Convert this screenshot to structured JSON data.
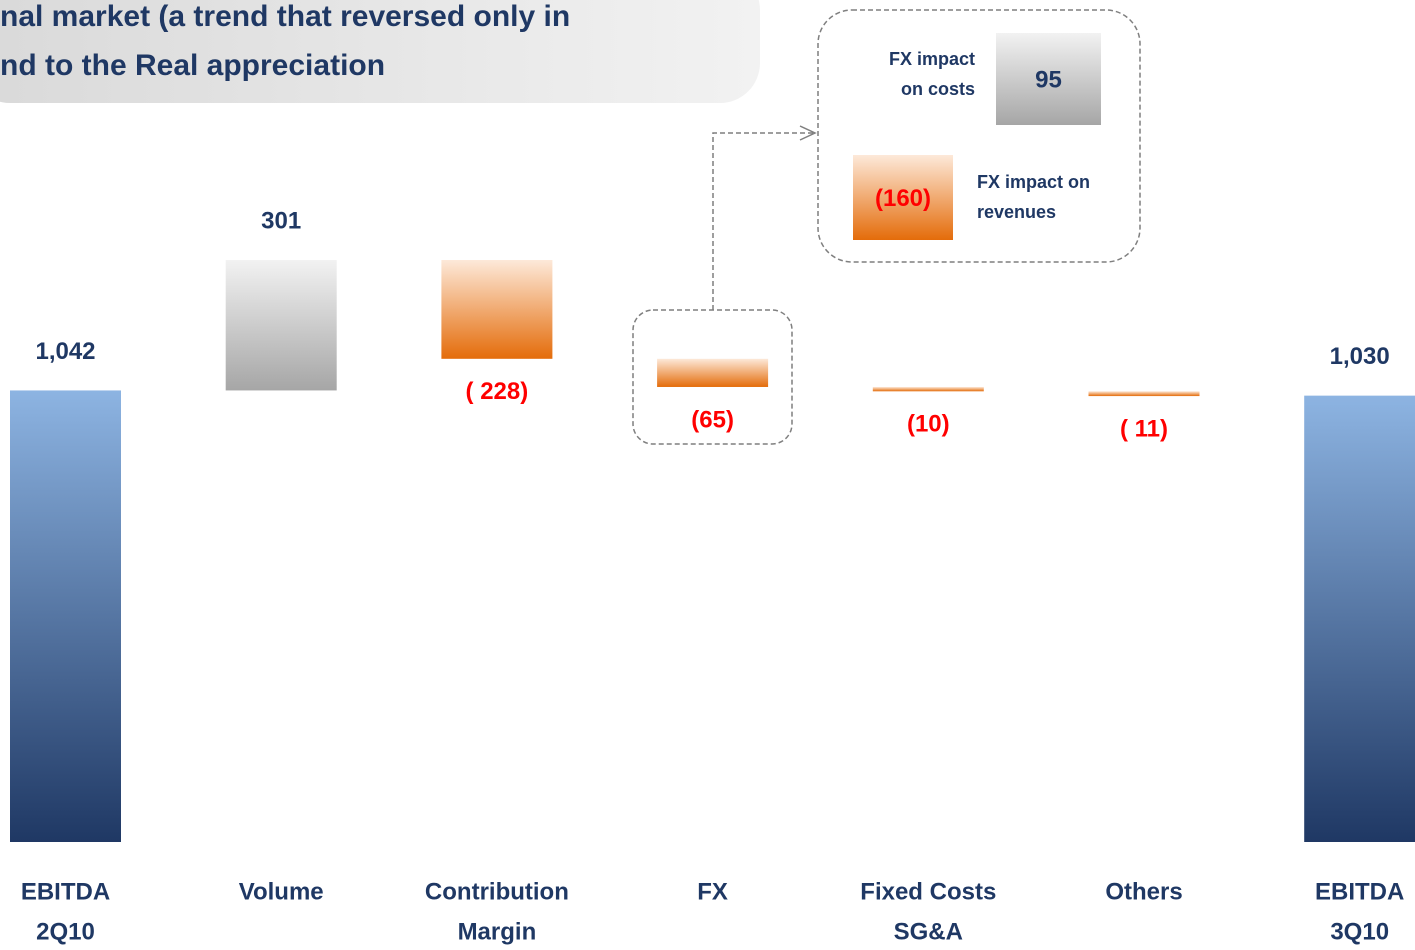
{
  "chart_data": {
    "type": "waterfall",
    "title_lines": [
      "nal market (a trend that reversed only in",
      "nd to the Real appreciation"
    ],
    "categories": [
      [
        "EBITDA",
        "2Q10"
      ],
      [
        "Volume"
      ],
      [
        "Contribution",
        "Margin"
      ],
      [
        "FX"
      ],
      [
        "Fixed Costs",
        "SG&A"
      ],
      [
        "Others"
      ],
      [
        "EBITDA",
        "3Q10"
      ]
    ],
    "values": [
      1042,
      301,
      -228,
      -65,
      -10,
      -11,
      1030
    ],
    "value_labels": [
      "1,042",
      "301",
      "( 228)",
      "(65)",
      "(10)",
      "( 11)",
      "1,030"
    ],
    "measure": [
      "absolute",
      "relative",
      "relative",
      "relative",
      "relative",
      "relative",
      "absolute"
    ],
    "colors": {
      "total": [
        "#8db4e2",
        "#1f3864"
      ],
      "increase": [
        "#f2f2f2",
        "#a6a6a6"
      ],
      "decrease": [
        "#fde9d9",
        "#e46c0a"
      ]
    },
    "label_colors": {
      "total": "#1f3864",
      "increase": "#1f3864",
      "decrease": "#ff0000"
    },
    "inset": {
      "items": [
        {
          "label": [
            "FX impact",
            "on costs"
          ],
          "value": 95
        },
        {
          "label": [
            "FX impact on",
            "revenues"
          ],
          "value": -160,
          "value_label": "(160)"
        }
      ]
    }
  }
}
